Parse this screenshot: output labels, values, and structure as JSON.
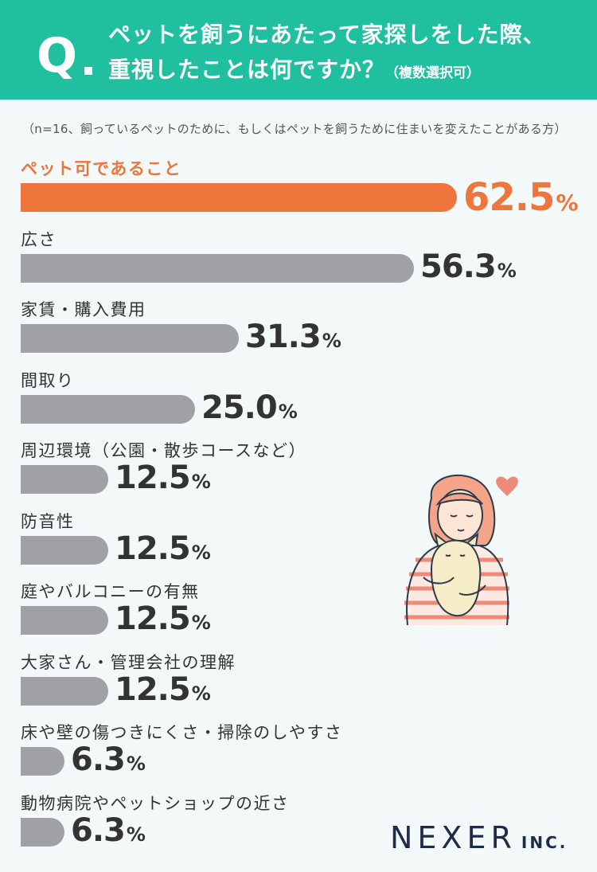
{
  "header": {
    "q_mark": "Q",
    "title_line1": "ペットを飼うにあたって家探しをした際、",
    "title_line2": "重視したことは何ですか？",
    "title_note": "（複数選択可）"
  },
  "sample_note": "（n=16、飼っているペットのために、もしくはペットを飼うために住まいを変えたことがある方）",
  "chart_data": {
    "type": "bar",
    "orientation": "horizontal",
    "unit": "%",
    "xlim": [
      0,
      62.5
    ],
    "categories": [
      "ペット可であること",
      "広さ",
      "家賃・購入費用",
      "間取り",
      "周辺環境（公園・散歩コースなど）",
      "防音性",
      "庭やバルコニーの有無",
      "大家さん・管理会社の理解",
      "床や壁の傷つきにくさ・掃除のしやすさ",
      "動物病院やペットショップの近さ"
    ],
    "values": [
      62.5,
      56.3,
      31.3,
      25.0,
      12.5,
      12.5,
      12.5,
      12.5,
      6.3,
      6.3
    ],
    "value_labels": [
      "62.5",
      "56.3",
      "31.3",
      "25.0",
      "12.5",
      "12.5",
      "12.5",
      "12.5",
      "6.3",
      "6.3"
    ],
    "highlight_index": 0,
    "colors": {
      "highlight": "#ee763c",
      "default": "#a0a1a6"
    }
  },
  "logo": {
    "main": "NEXER",
    "suffix": "INC."
  },
  "colors": {
    "header_bg": "#1fbf9f",
    "page_bg": "#f2f9f8"
  }
}
